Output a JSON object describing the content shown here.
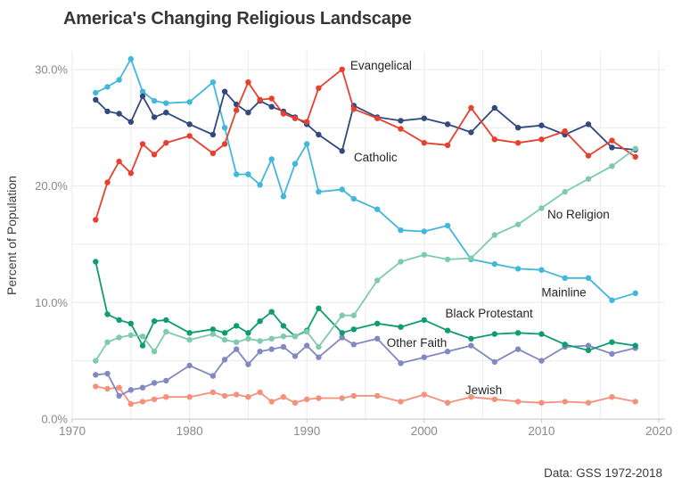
{
  "page": {
    "title": "America's Changing Religious Landscape",
    "ylabel": "Percent of Population",
    "source": "Data: GSS 1972-2018"
  },
  "chart_data": {
    "type": "line",
    "title": "America's Changing Religious Landscape",
    "xlabel": "",
    "ylabel": "Percent of Population",
    "xlim": [
      1970,
      2020
    ],
    "ylim": [
      0,
      31.6
    ],
    "grid": "on",
    "legend": "inline-annotations",
    "x": [
      1972,
      1973,
      1974,
      1975,
      1976,
      1977,
      1978,
      1980,
      1982,
      1983,
      1984,
      1985,
      1986,
      1987,
      1988,
      1989,
      1990,
      1991,
      1993,
      1994,
      1996,
      1998,
      2000,
      2002,
      2004,
      2006,
      2008,
      2010,
      2012,
      2014,
      2016,
      2018
    ],
    "series": [
      {
        "name": "Mainline",
        "color": "#41b7db",
        "values": [
          28.0,
          28.5,
          29.1,
          30.9,
          28.1,
          27.3,
          27.1,
          27.2,
          28.9,
          25.0,
          21.0,
          21.0,
          20.1,
          22.3,
          19.1,
          21.9,
          23.6,
          19.5,
          19.7,
          18.9,
          18.0,
          16.2,
          16.1,
          16.6,
          13.7,
          13.3,
          12.9,
          12.8,
          12.1,
          12.1,
          10.2,
          10.8
        ]
      },
      {
        "name": "Catholic",
        "color": "#32487f",
        "values": [
          27.4,
          26.4,
          26.2,
          25.5,
          27.7,
          25.9,
          26.3,
          25.3,
          24.4,
          28.1,
          27.0,
          26.3,
          27.3,
          26.8,
          26.4,
          25.9,
          25.3,
          24.4,
          23.0,
          26.9,
          25.9,
          25.6,
          25.8,
          25.3,
          24.6,
          26.7,
          25.0,
          25.2,
          24.4,
          25.3,
          23.3,
          23.1
        ]
      },
      {
        "name": "Evangelical",
        "color": "#e6402e",
        "values": [
          17.1,
          20.3,
          22.1,
          21.1,
          23.6,
          22.7,
          23.7,
          24.3,
          22.8,
          23.6,
          26.5,
          28.9,
          27.4,
          27.5,
          26.2,
          25.8,
          25.5,
          28.4,
          30.0,
          26.6,
          25.8,
          24.9,
          23.7,
          23.5,
          26.7,
          24.0,
          23.7,
          24.0,
          24.7,
          22.6,
          23.9,
          22.5
        ]
      },
      {
        "name": "Jewish",
        "color": "#f5907a",
        "values": [
          2.8,
          2.6,
          2.7,
          1.3,
          1.5,
          1.7,
          1.9,
          1.9,
          2.3,
          2.0,
          2.1,
          1.9,
          2.3,
          1.5,
          1.9,
          1.4,
          1.7,
          1.8,
          1.8,
          2.0,
          2.0,
          1.5,
          2.1,
          1.4,
          1.9,
          1.7,
          1.5,
          1.4,
          1.5,
          1.4,
          1.9,
          1.5
        ]
      },
      {
        "name": "Other Faith",
        "color": "#8288c1",
        "values": [
          3.8,
          3.9,
          2.0,
          2.5,
          2.7,
          3.1,
          3.3,
          4.6,
          3.7,
          5.1,
          6.0,
          4.7,
          5.8,
          6.0,
          6.2,
          5.4,
          6.3,
          5.3,
          7.0,
          6.4,
          6.9,
          4.8,
          5.3,
          5.8,
          6.3,
          4.9,
          6.0,
          5.0,
          6.2,
          6.3,
          5.6,
          6.1
        ]
      },
      {
        "name": "Black Protestant",
        "color": "#0f9c72",
        "values": [
          13.5,
          9.0,
          8.5,
          8.2,
          6.3,
          8.4,
          8.5,
          7.4,
          7.7,
          7.4,
          8.0,
          7.4,
          8.4,
          9.2,
          8.0,
          7.1,
          7.6,
          9.5,
          7.4,
          7.7,
          8.2,
          7.9,
          8.5,
          7.6,
          6.9,
          7.3,
          7.4,
          7.3,
          6.4,
          5.9,
          6.6,
          6.3
        ]
      },
      {
        "name": "No Religion",
        "color": "#7ecbac",
        "values": [
          5.0,
          6.6,
          7.0,
          7.2,
          7.1,
          5.8,
          7.5,
          6.8,
          7.3,
          6.8,
          6.6,
          6.9,
          6.7,
          6.9,
          7.1,
          7.1,
          7.5,
          6.2,
          8.9,
          8.9,
          11.9,
          13.5,
          14.1,
          13.7,
          13.8,
          15.8,
          16.7,
          18.1,
          19.5,
          20.6,
          21.7,
          23.2
        ]
      }
    ],
    "annotations": [
      {
        "text": "Evangelical",
        "x": 1993.7,
        "y": 30.35
      },
      {
        "text": "Catholic",
        "x": 1994.0,
        "y": 22.45
      },
      {
        "text": "No Religion",
        "x": 2010.5,
        "y": 17.55
      },
      {
        "text": "Mainline",
        "x": 2010.0,
        "y": 10.85
      },
      {
        "text": "Black Protestant",
        "x": 2001.8,
        "y": 9.05
      },
      {
        "text": "Other Faith",
        "x": 1996.8,
        "y": 6.55
      },
      {
        "text": "Jewish",
        "x": 2003.5,
        "y": 2.5
      }
    ],
    "xticks": [
      {
        "v": 1970,
        "label": "1970"
      },
      {
        "v": 1980,
        "label": "1980"
      },
      {
        "v": 1990,
        "label": "1990"
      },
      {
        "v": 2000,
        "label": "2000"
      },
      {
        "v": 2010,
        "label": "2010"
      },
      {
        "v": 2020,
        "label": "2020"
      }
    ],
    "yticks": [
      {
        "v": 0,
        "label": "0.0%"
      },
      {
        "v": 10,
        "label": "10.0%"
      },
      {
        "v": 20,
        "label": "20.0%"
      },
      {
        "v": 30,
        "label": "30.0%"
      }
    ],
    "grid_x_step": 5,
    "grid_y_step": 5,
    "grid_color": "#ebebeb",
    "axis_color": "#cfcfcf"
  }
}
